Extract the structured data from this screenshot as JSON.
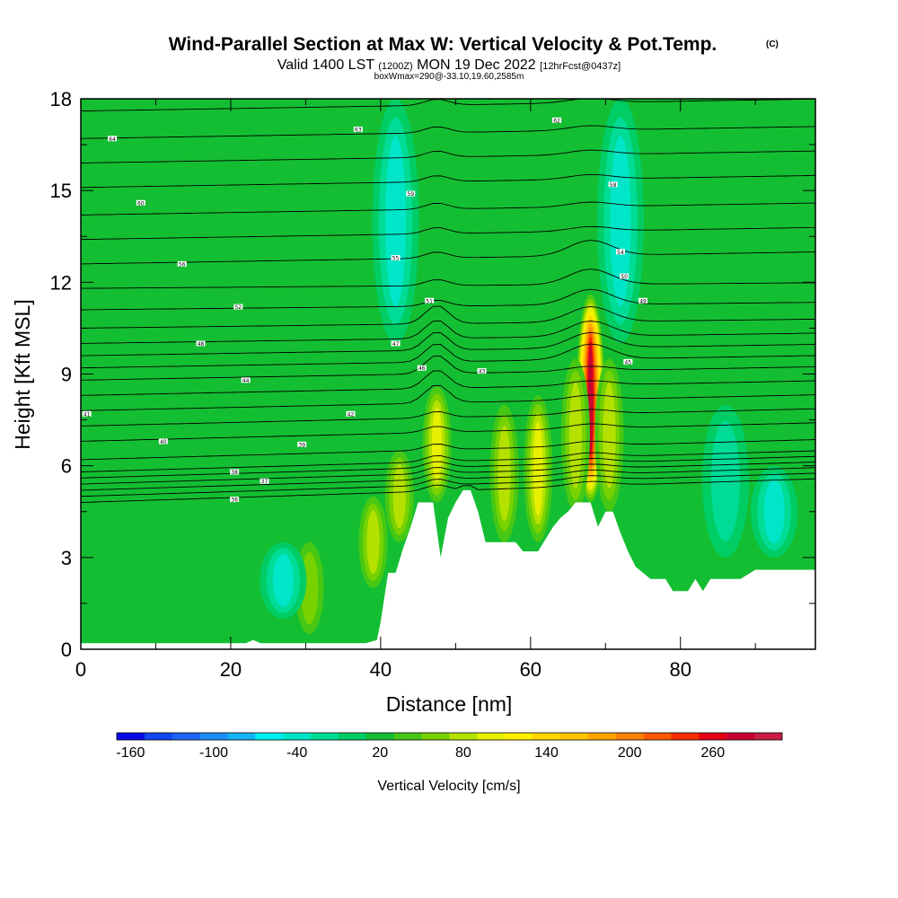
{
  "chart_data": {
    "type": "heatmap",
    "title": "Wind-Parallel Section at Max W: Vertical Velocity & Pot.Temp.",
    "copyright": "(C)",
    "subtitle_parts": [
      "Valid 1400 LST",
      "(1200Z)",
      "MON 19 Dec 2022",
      "[12hrFcst@0437z]"
    ],
    "box_line": "boxWmax=290@-33.10,19.60,2585m",
    "xlabel": "Distance [nm]",
    "ylabel": "Height [Kft MSL]",
    "xlim": [
      0,
      98
    ],
    "ylim": [
      0,
      18
    ],
    "x_ticks": [
      "0",
      "20",
      "40",
      "60",
      "80"
    ],
    "x_tick_values": [
      0,
      20,
      40,
      60,
      80
    ],
    "y_ticks": [
      "0",
      "3",
      "6",
      "9",
      "12",
      "15",
      "18"
    ],
    "y_tick_values": [
      0,
      3,
      6,
      9,
      12,
      15,
      18
    ],
    "colorbar": {
      "title": "Vertical Velocity [cm/s]",
      "tick_labels": [
        "-160",
        "-100",
        "-40",
        "20",
        "80",
        "140",
        "200",
        "260"
      ],
      "tick_values": [
        -160,
        -100,
        -40,
        20,
        80,
        140,
        200,
        260
      ],
      "min": -170,
      "max": 310,
      "step": 20,
      "colors": [
        "#0a0ae6",
        "#1446ef",
        "#1e64f5",
        "#1e8cf5",
        "#14b4f5",
        "#00f0f0",
        "#00e6c8",
        "#00dc96",
        "#00cd64",
        "#14be32",
        "#46c814",
        "#78d200",
        "#b4e100",
        "#e6f000",
        "#fff000",
        "#ffd700",
        "#ffc300",
        "#ffa500",
        "#ff8200",
        "#ff5a00",
        "#f52d00",
        "#e60014",
        "#c80032",
        "#c81e46"
      ]
    },
    "terrain_kft": [
      [
        0,
        0.2
      ],
      [
        2,
        0.2
      ],
      [
        4,
        0.2
      ],
      [
        6,
        0.2
      ],
      [
        8,
        0.2
      ],
      [
        10,
        0.2
      ],
      [
        12,
        0.2
      ],
      [
        14,
        0.2
      ],
      [
        16,
        0.2
      ],
      [
        18,
        0.2
      ],
      [
        20,
        0.2
      ],
      [
        22,
        0.2
      ],
      [
        23,
        0.3
      ],
      [
        24,
        0.2
      ],
      [
        26,
        0.2
      ],
      [
        28,
        0.2
      ],
      [
        30,
        0.2
      ],
      [
        32,
        0.2
      ],
      [
        34,
        0.2
      ],
      [
        36,
        0.2
      ],
      [
        38,
        0.2
      ],
      [
        39.5,
        0.3
      ],
      [
        40,
        0.9
      ],
      [
        41,
        2.5
      ],
      [
        42,
        2.5
      ],
      [
        43,
        3.3
      ],
      [
        44,
        4.0
      ],
      [
        45,
        4.8
      ],
      [
        46,
        4.8
      ],
      [
        47,
        4.8
      ],
      [
        48,
        3.0
      ],
      [
        49,
        4.3
      ],
      [
        50,
        4.8
      ],
      [
        51,
        5.2
      ],
      [
        52,
        5.2
      ],
      [
        53,
        4.5
      ],
      [
        54,
        3.5
      ],
      [
        56,
        3.5
      ],
      [
        58,
        3.5
      ],
      [
        59,
        3.2
      ],
      [
        61,
        3.2
      ],
      [
        62,
        3.6
      ],
      [
        63,
        4.0
      ],
      [
        64,
        4.3
      ],
      [
        65,
        4.5
      ],
      [
        66,
        4.8
      ],
      [
        68,
        4.8
      ],
      [
        69,
        4.0
      ],
      [
        70,
        4.5
      ],
      [
        71,
        4.5
      ],
      [
        72,
        3.8
      ],
      [
        73,
        3.2
      ],
      [
        74,
        2.7
      ],
      [
        76,
        2.3
      ],
      [
        78,
        2.3
      ],
      [
        79,
        1.9
      ],
      [
        81,
        1.9
      ],
      [
        82,
        2.3
      ],
      [
        83,
        1.9
      ],
      [
        84,
        2.3
      ],
      [
        86,
        2.3
      ],
      [
        88,
        2.3
      ],
      [
        90,
        2.6
      ],
      [
        92,
        2.6
      ],
      [
        94,
        2.6
      ],
      [
        96,
        2.6
      ],
      [
        98,
        2.6
      ]
    ],
    "vertical_velocity_features_cm_s": [
      {
        "x": 68,
        "y_from": 4.8,
        "y_to": 11.6,
        "peak": 290
      },
      {
        "x": 66,
        "y_from": 4.5,
        "y_to": 9.5,
        "peak": 90
      },
      {
        "x": 70.5,
        "y_from": 4.5,
        "y_to": 9.5,
        "peak": 80
      },
      {
        "x": 61,
        "y_from": 3.5,
        "y_to": 8.3,
        "peak": 100
      },
      {
        "x": 56.5,
        "y_from": 3.5,
        "y_to": 8.0,
        "peak": 90
      },
      {
        "x": 47.5,
        "y_from": 4.8,
        "y_to": 8.6,
        "peak": 110
      },
      {
        "x": 42.5,
        "y_from": 3.5,
        "y_to": 6.5,
        "peak": 80
      },
      {
        "x": 39,
        "y_from": 2.0,
        "y_to": 5.0,
        "peak": 80
      },
      {
        "x": 30.5,
        "y_from": 0.5,
        "y_to": 3.5,
        "peak": 60
      },
      {
        "x": 72,
        "y_from": 10.0,
        "y_to": 18.0,
        "peak": -50
      },
      {
        "x": 42,
        "y_from": 10.0,
        "y_to": 18.0,
        "peak": -40
      },
      {
        "x": 27,
        "y_from": 1.0,
        "y_to": 3.5,
        "peak": -45
      },
      {
        "x": 86,
        "y_from": 3.0,
        "y_to": 8.0,
        "peak": -35
      },
      {
        "x": 92.5,
        "y_from": 3.0,
        "y_to": 6.0,
        "peak": -45
      }
    ],
    "potential_temperature_isentrope_heights_kft": [
      4.8,
      5.0,
      5.2,
      5.4,
      5.6,
      5.8,
      6.2,
      6.8,
      7.3,
      7.8,
      8.3,
      8.8,
      9.2,
      9.6,
      10.0,
      10.5,
      11.1,
      11.8,
      12.6,
      13.4,
      14.2,
      15.1,
      15.9,
      16.7,
      17.6
    ],
    "contour_labels": [
      {
        "x": 4.2,
        "y": 16.7,
        "text": "64"
      },
      {
        "x": 37,
        "y": 17.0,
        "text": "63"
      },
      {
        "x": 63.5,
        "y": 17.3,
        "text": "62"
      },
      {
        "x": 8,
        "y": 14.6,
        "text": "60"
      },
      {
        "x": 44,
        "y": 14.9,
        "text": "59"
      },
      {
        "x": 71,
        "y": 15.2,
        "text": "58"
      },
      {
        "x": 13.5,
        "y": 12.6,
        "text": "56"
      },
      {
        "x": 42,
        "y": 12.8,
        "text": "55"
      },
      {
        "x": 72,
        "y": 13.0,
        "text": "54"
      },
      {
        "x": 21,
        "y": 11.2,
        "text": "52"
      },
      {
        "x": 46.5,
        "y": 11.4,
        "text": "51"
      },
      {
        "x": 72.5,
        "y": 12.2,
        "text": "50"
      },
      {
        "x": 75,
        "y": 11.4,
        "text": "49"
      },
      {
        "x": 16,
        "y": 10.0,
        "text": "48"
      },
      {
        "x": 42,
        "y": 10.0,
        "text": "47"
      },
      {
        "x": 45.5,
        "y": 9.2,
        "text": "46"
      },
      {
        "x": 73,
        "y": 9.4,
        "text": "45"
      },
      {
        "x": 22,
        "y": 8.8,
        "text": "44"
      },
      {
        "x": 53.5,
        "y": 9.1,
        "text": "43"
      },
      {
        "x": 36,
        "y": 7.7,
        "text": "42"
      },
      {
        "x": 0.8,
        "y": 7.7,
        "text": "41"
      },
      {
        "x": 11,
        "y": 6.8,
        "text": "40"
      },
      {
        "x": 29.5,
        "y": 6.7,
        "text": "39"
      },
      {
        "x": 20.5,
        "y": 5.8,
        "text": "38"
      },
      {
        "x": 24.5,
        "y": 5.5,
        "text": "37"
      },
      {
        "x": 20.5,
        "y": 4.9,
        "text": "36"
      }
    ]
  }
}
